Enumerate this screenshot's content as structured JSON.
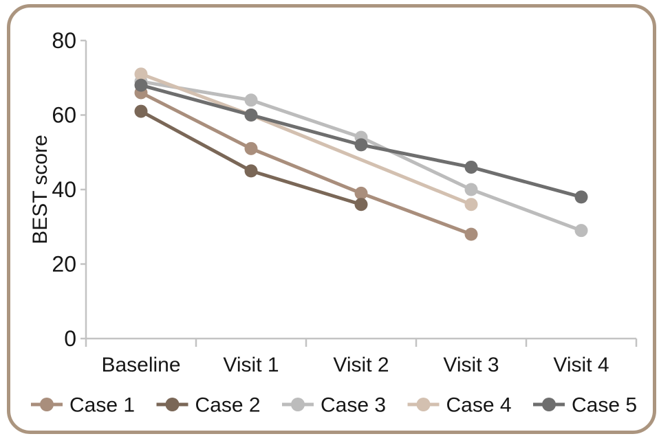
{
  "figure": {
    "border_color": "#ab957f",
    "background_color": "#ffffff",
    "axis_color": "#c3c3c3",
    "text_color": "#161616"
  },
  "chart_data": {
    "type": "line",
    "title": "",
    "xlabel": "",
    "ylabel": "BEST score",
    "categories": [
      "Baseline",
      "Visit 1",
      "Visit 2",
      "Visit 3",
      "Visit 4"
    ],
    "series": [
      {
        "name": "Case 1",
        "color": "#a98e7c",
        "values": [
          66,
          51,
          39,
          28,
          null
        ]
      },
      {
        "name": "Case 2",
        "color": "#7a6757",
        "values": [
          61,
          45,
          36,
          null,
          null
        ]
      },
      {
        "name": "Case 3",
        "color": "#bcbcbc",
        "values": [
          69,
          64,
          54,
          40,
          29
        ]
      },
      {
        "name": "Case 4",
        "color": "#d3c0b0",
        "values": [
          71,
          60,
          null,
          36,
          null
        ]
      },
      {
        "name": "Case 5",
        "color": "#6e6e6e",
        "values": [
          68,
          60,
          52,
          46,
          38
        ]
      }
    ],
    "ylim": [
      0,
      80
    ],
    "yticks": [
      0,
      20,
      40,
      60,
      80
    ],
    "grid": false,
    "legend_position": "bottom",
    "notes": "Lines connect across missing values; Case 2 ends at Visit 2, Cases 1 and 4 end at Visit 3"
  }
}
